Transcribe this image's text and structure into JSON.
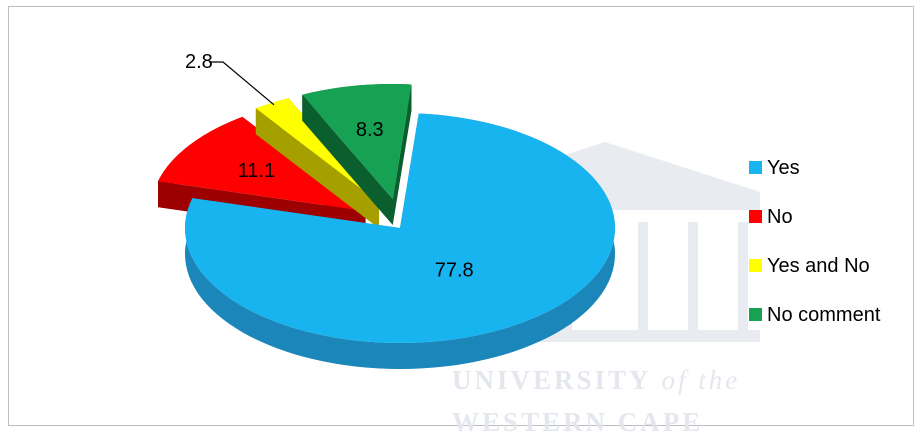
{
  "chart_data": {
    "type": "pie",
    "style": "3d-exploded",
    "categories": [
      "Yes",
      "No",
      "Yes and No",
      "No comment"
    ],
    "values": [
      77.8,
      11.1,
      2.8,
      8.3
    ],
    "labels": [
      "77.8",
      "11.1",
      "2.8",
      "8.3"
    ],
    "colors": [
      "#18b4ef",
      "#ff0000",
      "#ffff00",
      "#17a152"
    ],
    "side_colors": [
      "#1a86b9",
      "#9c0000",
      "#a59f00",
      "#0b5e2d"
    ],
    "legend_position": "right",
    "title": ""
  },
  "watermark": {
    "line1": "UNIVERSITY",
    "line1_tail": "of the",
    "line2": "WESTERN CAPE"
  }
}
